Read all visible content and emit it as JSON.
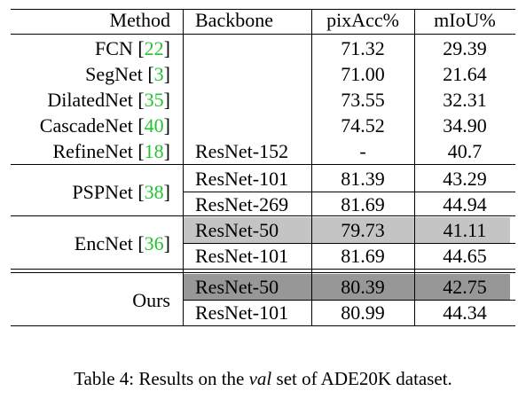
{
  "columns": [
    "Method",
    "Backbone",
    "pixAcc%",
    "mIoU%"
  ],
  "rows": [
    {
      "method": "FCN",
      "cite": "22",
      "backbone": "",
      "pixacc": "71.32",
      "miou": "29.39"
    },
    {
      "method": "SegNet",
      "cite": "3",
      "backbone": "",
      "pixacc": "71.00",
      "miou": "21.64"
    },
    {
      "method": "DilatedNet",
      "cite": "35",
      "backbone": "",
      "pixacc": "73.55",
      "miou": "32.31"
    },
    {
      "method": "CascadeNet",
      "cite": "40",
      "backbone": "",
      "pixacc": "74.52",
      "miou": "34.90"
    },
    {
      "method": "RefineNet",
      "cite": "18",
      "backbone": "ResNet-152",
      "pixacc": "-",
      "miou": "40.7"
    },
    {
      "method": "PSPNet",
      "cite": "38",
      "backbone": "ResNet-101",
      "pixacc": "81.39",
      "miou": "43.29"
    },
    {
      "method": "",
      "cite": "",
      "backbone": "ResNet-269",
      "pixacc": "81.69",
      "miou": "44.94"
    },
    {
      "method": "EncNet",
      "cite": "36",
      "backbone": "ResNet-50",
      "pixacc": "79.73",
      "miou": "41.11",
      "shade": "light"
    },
    {
      "method": "",
      "cite": "",
      "backbone": "ResNet-101",
      "pixacc": "81.69",
      "miou": "44.65"
    },
    {
      "method": "Ours",
      "cite": "",
      "backbone": "ResNet-50",
      "pixacc": "80.39",
      "miou": "42.75",
      "shade": "dark"
    },
    {
      "method": "",
      "cite": "",
      "backbone": "ResNet-101",
      "pixacc": "80.99",
      "miou": "44.34"
    }
  ],
  "shade_colors": {
    "light": "#c4c4c4",
    "dark": "#979797"
  },
  "caption": {
    "prefix": "Table 4: Results on the ",
    "emph": "val",
    "suffix": " set of ADE20K dataset."
  }
}
